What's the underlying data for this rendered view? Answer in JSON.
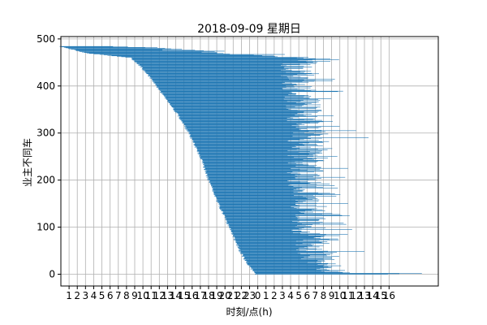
{
  "chart_data": {
    "type": "bar",
    "orientation": "horizontal",
    "title": "2018-09-09 星期日",
    "xlabel": "时刻/点(h)",
    "ylabel": "业主不同车",
    "ylim": [
      -25,
      505
    ],
    "yticks": [
      0,
      100,
      200,
      300,
      400,
      500
    ],
    "xlim": [
      0,
      46
    ],
    "xticks": [
      1,
      2,
      3,
      4,
      5,
      6,
      7,
      8,
      9,
      10,
      11,
      12,
      13,
      14,
      15,
      16,
      17,
      18,
      19,
      20,
      21,
      22,
      23,
      24,
      25,
      26,
      27,
      28,
      29,
      30,
      31,
      32,
      33,
      34,
      35,
      36,
      37,
      38,
      39,
      40
    ],
    "xtick_labels": [
      "1",
      "2",
      "3",
      "4",
      "5",
      "6",
      "7",
      "8",
      "9",
      "10",
      "11",
      "12",
      "13",
      "14",
      "15",
      "16",
      "17",
      "18",
      "19",
      "20",
      "21",
      "22",
      "23",
      "0",
      "1",
      "2",
      "3",
      "4",
      "5",
      "6",
      "7",
      "8",
      "9",
      "10",
      "11",
      "12",
      "13",
      "14",
      "15",
      "16"
    ],
    "grid": true,
    "bar_color": "#1f77b4",
    "series_summary": "about 485 horizontal bars, one per owner vehicle (y = 0 at bottom to ~484 at top); each bar spans that vehicle's parking interval in hours",
    "arrivals_anchor": [
      {
        "y": 484,
        "x": 0
      },
      {
        "y": 470,
        "x": 3
      },
      {
        "y": 460,
        "x": 8.5
      },
      {
        "y": 445,
        "x": 9.5
      },
      {
        "y": 420,
        "x": 10.8
      },
      {
        "y": 380,
        "x": 12.5
      },
      {
        "y": 340,
        "x": 14.2
      },
      {
        "y": 300,
        "x": 15.6
      },
      {
        "y": 250,
        "x": 17
      },
      {
        "y": 200,
        "x": 18
      },
      {
        "y": 150,
        "x": 19.2
      },
      {
        "y": 100,
        "x": 20.5
      },
      {
        "y": 50,
        "x": 21.8
      },
      {
        "y": 20,
        "x": 22.8
      },
      {
        "y": 5,
        "x": 23.5
      },
      {
        "y": 0,
        "x": 23.8
      }
    ],
    "departures_anchor": [
      {
        "y": 484,
        "x": 10
      },
      {
        "y": 460,
        "x": 32
      },
      {
        "y": 440,
        "x": 31
      },
      {
        "y": 400,
        "x": 31
      },
      {
        "y": 350,
        "x": 32
      },
      {
        "y": 300,
        "x": 32
      },
      {
        "y": 250,
        "x": 32
      },
      {
        "y": 200,
        "x": 32
      },
      {
        "y": 150,
        "x": 32.5
      },
      {
        "y": 100,
        "x": 32.5
      },
      {
        "y": 50,
        "x": 33
      },
      {
        "y": 5,
        "x": 35
      },
      {
        "y": 0,
        "x": 44
      }
    ],
    "notable_long_bars": [
      {
        "y": 2,
        "end": 44
      },
      {
        "y": 48,
        "end": 37
      },
      {
        "y": 95,
        "end": 35.5
      },
      {
        "y": 305,
        "end": 36
      },
      {
        "y": 290,
        "end": 37.5
      },
      {
        "y": 225,
        "end": 35
      },
      {
        "y": 150,
        "end": 35
      }
    ]
  }
}
